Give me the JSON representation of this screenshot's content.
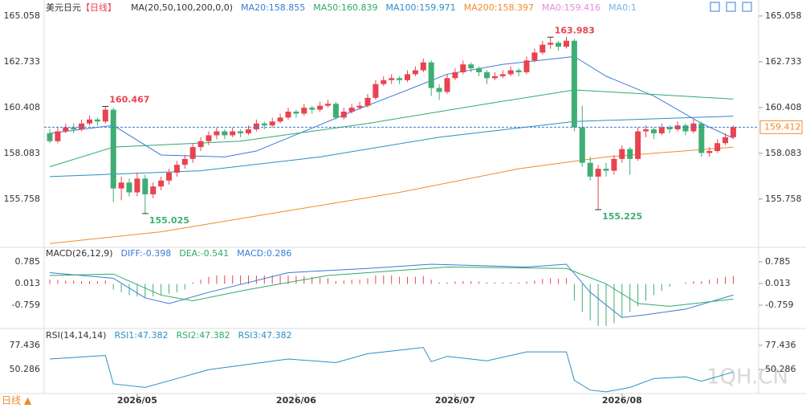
{
  "title": "美元日元",
  "period": "【日线】",
  "period_button": "日线 ▲",
  "watermark": "1QH.CN",
  "chart_data": [
    {
      "type": "candlestick",
      "up_color": "#e8434f",
      "down_color": "#3fae74",
      "legend": [
        {
          "text": "MA(20,50,100,200,0,0)",
          "color": "#333333"
        },
        {
          "text": "MA20:158.855",
          "color": "#3a7bd5"
        },
        {
          "text": "MA50:160.839",
          "color": "#2eaa6a"
        },
        {
          "text": "MA100:159.971",
          "color": "#2a8fc9"
        },
        {
          "text": "MA200:158.397",
          "color": "#f08a2c"
        },
        {
          "text": "MA0:159.416",
          "color": "#e58ad8"
        },
        {
          "text": "MA0:1",
          "color": "#74b6e8"
        }
      ],
      "ylim": [
        153.43,
        165.38
      ],
      "yticks": [
        165.058,
        162.733,
        160.408,
        158.083,
        155.758
      ],
      "xlabels": [
        {
          "value": 11,
          "label": "2026/05"
        },
        {
          "value": 31,
          "label": "2026/06"
        },
        {
          "value": 51,
          "label": "2026/07"
        },
        {
          "value": 72,
          "label": "2026/08"
        }
      ],
      "last": 159.412,
      "ohlc": [
        [
          159.1,
          159.3,
          158.6,
          158.7
        ],
        [
          158.7,
          159.4,
          158.6,
          159.2
        ],
        [
          159.2,
          159.6,
          159.1,
          159.4
        ],
        [
          159.4,
          159.6,
          159.1,
          159.3
        ],
        [
          159.3,
          159.8,
          159.2,
          159.6
        ],
        [
          159.6,
          160.0,
          159.5,
          159.8
        ],
        [
          159.8,
          159.9,
          159.5,
          159.7
        ],
        [
          159.7,
          160.467,
          159.6,
          160.3
        ],
        [
          160.3,
          160.4,
          155.6,
          156.3
        ],
        [
          156.3,
          156.9,
          155.7,
          156.6
        ],
        [
          156.6,
          156.8,
          155.9,
          156.1
        ],
        [
          156.1,
          157.1,
          155.9,
          156.8
        ],
        [
          156.8,
          157.0,
          155.025,
          156.0
        ],
        [
          156.0,
          156.6,
          155.8,
          156.4
        ],
        [
          156.4,
          156.9,
          156.2,
          156.7
        ],
        [
          156.7,
          157.3,
          156.5,
          157.1
        ],
        [
          157.1,
          157.7,
          156.9,
          157.5
        ],
        [
          157.5,
          158.0,
          157.3,
          157.8
        ],
        [
          157.8,
          158.6,
          157.6,
          158.4
        ],
        [
          158.4,
          158.9,
          158.2,
          158.7
        ],
        [
          158.7,
          159.2,
          158.5,
          159.0
        ],
        [
          159.0,
          159.4,
          158.8,
          159.2
        ],
        [
          159.2,
          159.3,
          158.8,
          159.0
        ],
        [
          159.0,
          159.4,
          158.9,
          159.2
        ],
        [
          159.2,
          159.3,
          158.9,
          159.1
        ],
        [
          159.1,
          159.5,
          159.0,
          159.3
        ],
        [
          159.3,
          159.8,
          159.2,
          159.6
        ],
        [
          159.6,
          159.7,
          159.3,
          159.5
        ],
        [
          159.5,
          159.9,
          159.4,
          159.7
        ],
        [
          159.7,
          160.1,
          159.6,
          159.9
        ],
        [
          159.9,
          160.4,
          159.8,
          160.2
        ],
        [
          160.2,
          160.3,
          159.9,
          160.1
        ],
        [
          160.1,
          160.6,
          160.0,
          160.4
        ],
        [
          160.4,
          160.5,
          160.1,
          160.3
        ],
        [
          160.3,
          160.7,
          160.2,
          160.5
        ],
        [
          160.5,
          160.8,
          160.4,
          160.6
        ],
        [
          160.6,
          160.7,
          159.8,
          159.9
        ],
        [
          159.9,
          160.4,
          159.8,
          160.2
        ],
        [
          160.2,
          160.6,
          160.1,
          160.4
        ],
        [
          160.4,
          160.7,
          160.3,
          160.5
        ],
        [
          160.5,
          161.1,
          160.4,
          160.9
        ],
        [
          160.9,
          161.8,
          160.8,
          161.6
        ],
        [
          161.6,
          162.0,
          161.5,
          161.8
        ],
        [
          161.8,
          162.1,
          161.6,
          161.9
        ],
        [
          161.9,
          162.0,
          161.6,
          161.8
        ],
        [
          161.8,
          162.3,
          161.7,
          162.1
        ],
        [
          162.1,
          162.5,
          162.0,
          162.3
        ],
        [
          162.3,
          162.9,
          162.2,
          162.7
        ],
        [
          162.7,
          162.8,
          161.0,
          161.4
        ],
        [
          161.4,
          161.6,
          160.8,
          161.2
        ],
        [
          161.2,
          162.1,
          161.1,
          161.9
        ],
        [
          161.9,
          162.4,
          161.8,
          162.2
        ],
        [
          162.2,
          162.8,
          162.1,
          162.6
        ],
        [
          162.6,
          162.7,
          162.2,
          162.4
        ],
        [
          162.4,
          162.5,
          162.0,
          162.2
        ],
        [
          162.2,
          162.3,
          161.6,
          161.9
        ],
        [
          161.9,
          162.2,
          161.8,
          162.0
        ],
        [
          162.0,
          162.3,
          161.9,
          162.1
        ],
        [
          162.1,
          162.5,
          162.0,
          162.3
        ],
        [
          162.3,
          162.4,
          162.0,
          162.2
        ],
        [
          162.2,
          163.0,
          162.1,
          162.8
        ],
        [
          162.8,
          163.4,
          162.7,
          163.2
        ],
        [
          163.2,
          163.8,
          163.1,
          163.6
        ],
        [
          163.6,
          163.983,
          163.4,
          163.7
        ],
        [
          163.7,
          163.8,
          163.3,
          163.5
        ],
        [
          163.5,
          164.0,
          163.4,
          163.8
        ],
        [
          163.8,
          163.9,
          159.2,
          159.4
        ],
        [
          159.4,
          160.5,
          157.4,
          157.6
        ],
        [
          157.6,
          157.9,
          156.7,
          156.9
        ],
        [
          156.9,
          157.5,
          155.225,
          157.3
        ],
        [
          157.3,
          157.6,
          156.9,
          157.2
        ],
        [
          157.2,
          158.0,
          157.0,
          157.8
        ],
        [
          157.8,
          158.5,
          157.6,
          158.3
        ],
        [
          158.3,
          158.4,
          157.0,
          157.8
        ],
        [
          157.8,
          159.4,
          157.7,
          159.2
        ],
        [
          159.2,
          159.5,
          158.9,
          159.3
        ],
        [
          159.3,
          159.4,
          158.8,
          159.1
        ],
        [
          159.1,
          159.6,
          159.0,
          159.4
        ],
        [
          159.4,
          159.5,
          159.1,
          159.3
        ],
        [
          159.3,
          159.7,
          159.2,
          159.5
        ],
        [
          159.5,
          159.6,
          159.0,
          159.2
        ],
        [
          159.2,
          159.8,
          159.1,
          159.6
        ],
        [
          159.6,
          159.7,
          157.9,
          158.1
        ],
        [
          158.1,
          158.4,
          157.9,
          158.2
        ],
        [
          158.2,
          158.8,
          158.1,
          158.6
        ],
        [
          158.6,
          159.1,
          158.5,
          158.9
        ],
        [
          158.9,
          159.5,
          158.8,
          159.412
        ]
      ],
      "annotations": [
        {
          "index": 7,
          "value": 160.467
        },
        {
          "index": 12,
          "value": 155.025
        },
        {
          "index": 63,
          "value": 163.983
        },
        {
          "index": 69,
          "value": 155.225
        }
      ],
      "lines": [
        {
          "color": "#3a7bd5",
          "x": [
            0,
            8,
            14,
            22,
            26,
            32,
            38,
            45,
            50,
            57,
            66,
            70,
            76,
            82,
            86
          ],
          "values": [
            159.1,
            159.5,
            158.0,
            157.9,
            158.2,
            159.2,
            160.2,
            161.3,
            162.1,
            162.6,
            163.0,
            162.0,
            161.0,
            159.6,
            158.855
          ]
        },
        {
          "color": "#2eaa6a",
          "x": [
            0,
            8,
            24,
            40,
            55,
            66,
            75,
            86
          ],
          "values": [
            157.4,
            158.4,
            158.7,
            159.6,
            160.6,
            161.3,
            161.1,
            160.839
          ]
        },
        {
          "color": "#2a8fc9",
          "x": [
            0,
            19,
            34,
            49,
            66,
            86
          ],
          "values": [
            156.9,
            157.2,
            157.9,
            158.9,
            159.7,
            159.971
          ]
        },
        {
          "color": "#f08a2c",
          "x": [
            0,
            14,
            29,
            44,
            59,
            70,
            86
          ],
          "values": [
            153.5,
            154.1,
            155.1,
            156.1,
            157.3,
            157.9,
            158.397
          ]
        }
      ]
    },
    {
      "type": "macd",
      "up_color": "#e8434f",
      "down_color": "#3fae74",
      "legend": [
        {
          "text": "MACD(26,12,9)",
          "color": "#333333"
        },
        {
          "text": "DIFF:-0.398",
          "color": "#3a7bd5"
        },
        {
          "text": "DEA:-0.541",
          "color": "#2eaa6a"
        },
        {
          "text": "MACD:0.286",
          "color": "#3a7bd5"
        }
      ],
      "ylim": [
        -1.56,
        1.243
      ],
      "yticks": [
        0.785,
        0.013,
        -0.759
      ],
      "values": [
        0.15,
        0.14,
        0.12,
        0.12,
        0.1,
        0.1,
        0.1,
        0.12,
        -0.2,
        -0.3,
        -0.4,
        -0.45,
        -0.5,
        -0.45,
        -0.4,
        -0.35,
        -0.3,
        -0.2,
        0.05,
        0.15,
        0.25,
        0.3,
        0.3,
        0.3,
        0.3,
        0.3,
        0.3,
        0.3,
        0.3,
        0.3,
        0.3,
        0.28,
        0.28,
        0.25,
        0.22,
        0.2,
        0.1,
        0.12,
        0.15,
        0.15,
        0.2,
        0.3,
        0.3,
        0.3,
        0.25,
        0.25,
        0.25,
        0.28,
        0.15,
        0.05,
        0.05,
        0.08,
        0.1,
        0.1,
        0.08,
        0.05,
        0.05,
        0.05,
        0.05,
        0.05,
        0.08,
        0.12,
        0.18,
        0.2,
        0.18,
        0.2,
        -0.6,
        -1.0,
        -1.3,
        -1.5,
        -1.5,
        -1.4,
        -1.2,
        -1.0,
        -0.8,
        -0.6,
        -0.4,
        -0.25,
        -0.1,
        0.0,
        0.05,
        0.1,
        0.1,
        0.15,
        0.2,
        0.25,
        0.286
      ],
      "lines": [
        {
          "color": "#3a7bd5",
          "x": [
            0,
            8,
            12,
            15,
            20,
            30,
            40,
            48,
            60,
            65,
            68,
            72,
            75,
            80,
            86
          ],
          "values": [
            0.4,
            0.2,
            -0.5,
            -0.7,
            -0.3,
            0.4,
            0.55,
            0.7,
            0.6,
            0.7,
            -0.3,
            -1.2,
            -1.1,
            -0.9,
            -0.398
          ]
        },
        {
          "color": "#2eaa6a",
          "x": [
            0,
            8,
            14,
            18,
            25,
            35,
            50,
            65,
            70,
            74,
            78,
            86
          ],
          "values": [
            0.3,
            0.35,
            -0.4,
            -0.6,
            -0.2,
            0.3,
            0.6,
            0.55,
            0.0,
            -0.7,
            -0.8,
            -0.541
          ]
        }
      ]
    },
    {
      "type": "rsi",
      "legend": [
        {
          "text": "RSI(14,14,14)",
          "color": "#333333"
        },
        {
          "text": "RSI1:47.382",
          "color": "#2a8fc9"
        },
        {
          "text": "RSI2:47.382",
          "color": "#2eaa6a"
        },
        {
          "text": "RSI3:47.382",
          "color": "#2a8fc9"
        }
      ],
      "ylim": [
        23.1,
        95.5
      ],
      "yticks": [
        77.436,
        50.286
      ],
      "lines": [
        {
          "color": "#2a8fc9",
          "x": [
            0,
            7,
            8,
            12,
            16,
            20,
            30,
            36,
            40,
            47,
            48,
            50,
            55,
            60,
            65,
            66,
            68,
            70,
            73,
            76,
            80,
            82,
            86
          ],
          "values": [
            62,
            66,
            34,
            30,
            40,
            50,
            62,
            58,
            68,
            75,
            59,
            65,
            60,
            70,
            70,
            38,
            27,
            25,
            30,
            40,
            42,
            37,
            47.382
          ]
        }
      ]
    }
  ]
}
